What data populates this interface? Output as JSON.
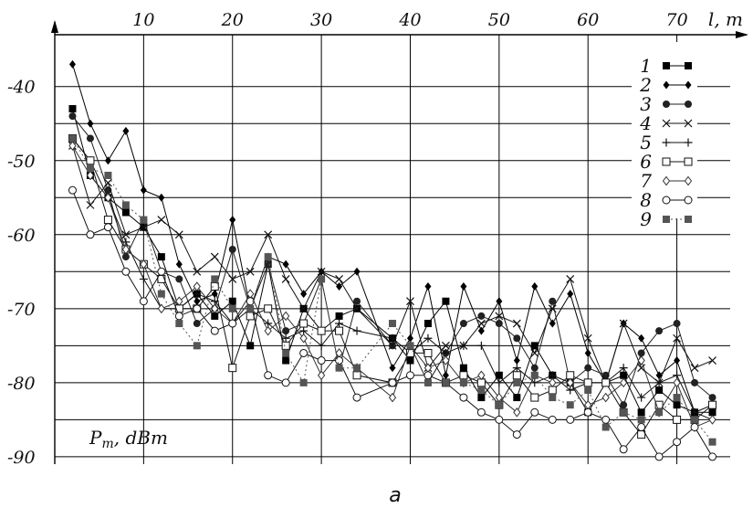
{
  "chart_data": {
    "type": "line",
    "caption": "а",
    "xlabel": "l, m",
    "ylabel": "Pm, dBm",
    "ylabel_main": "P",
    "ylabel_sub": "m",
    "ylabel_rest": ", dBm",
    "xlim": [
      0,
      76
    ],
    "ylim": [
      -91,
      -33
    ],
    "x_ticks": [
      10,
      20,
      30,
      40,
      50,
      60,
      70
    ],
    "y_ticks": [
      -40,
      -50,
      -60,
      -70,
      -80,
      -90
    ],
    "grid": true,
    "legend_position": "top-right",
    "series": [
      {
        "name": "1",
        "marker": "square-filled",
        "color": "#000000",
        "dash": "",
        "x": [
          2,
          4,
          6,
          8,
          10,
          12,
          14,
          16,
          18,
          20,
          22,
          24,
          26,
          28,
          30,
          32,
          34,
          38,
          40,
          42,
          44,
          46,
          48,
          50,
          52,
          54,
          56,
          58,
          60,
          62,
          64,
          66,
          68,
          70,
          72,
          74
        ],
        "y": [
          -43,
          -52,
          -55,
          -57,
          -59,
          -63,
          -70,
          -68,
          -71,
          -69,
          -75,
          -64,
          -77,
          -70,
          -73,
          -71,
          -70,
          -74,
          -77,
          -72,
          -69,
          -78,
          -82,
          -79,
          -82,
          -75,
          -79,
          -80,
          -84,
          -80,
          -79,
          -84,
          -81,
          -83,
          -84,
          -84
        ]
      },
      {
        "name": "2",
        "marker": "diamond-filled",
        "color": "#000000",
        "dash": "",
        "x": [
          2,
          4,
          6,
          8,
          10,
          12,
          14,
          16,
          18,
          20,
          22,
          24,
          26,
          28,
          30,
          32,
          34,
          38,
          40,
          42,
          44,
          46,
          48,
          50,
          52,
          54,
          56,
          58,
          60,
          62,
          64,
          66,
          68,
          70,
          72,
          74
        ],
        "y": [
          -37,
          -45,
          -50,
          -46,
          -54,
          -55,
          -64,
          -69,
          -68,
          -58,
          -70,
          -63,
          -64,
          -68,
          -65,
          -67,
          -65,
          -78,
          -74,
          -67,
          -79,
          -67,
          -73,
          -69,
          -77,
          -67,
          -72,
          -68,
          -76,
          -80,
          -72,
          -74,
          -79,
          -77,
          -84,
          -83
        ]
      },
      {
        "name": "3",
        "marker": "circle-filled",
        "color": "#222222",
        "dash": "",
        "x": [
          2,
          4,
          6,
          8,
          10,
          12,
          14,
          16,
          18,
          20,
          22,
          24,
          26,
          28,
          30,
          32,
          34,
          38,
          40,
          42,
          44,
          46,
          48,
          50,
          52,
          54,
          56,
          58,
          60,
          62,
          64,
          66,
          68,
          70,
          72,
          74
        ],
        "y": [
          -44,
          -47,
          -54,
          -63,
          -58,
          -65,
          -66,
          -72,
          -70,
          -62,
          -70,
          -64,
          -73,
          -72,
          -66,
          -78,
          -69,
          -75,
          -75,
          -80,
          -76,
          -72,
          -71,
          -72,
          -74,
          -78,
          -69,
          -80,
          -78,
          -79,
          -83,
          -76,
          -73,
          -72,
          -80,
          -82
        ]
      },
      {
        "name": "4",
        "marker": "x",
        "color": "#111111",
        "dash": "",
        "x": [
          2,
          4,
          6,
          8,
          10,
          12,
          14,
          16,
          18,
          20,
          22,
          24,
          26,
          28,
          30,
          32,
          34,
          38,
          40,
          42,
          44,
          46,
          48,
          50,
          52,
          54,
          56,
          58,
          60,
          62,
          64,
          66,
          68,
          70,
          72,
          74
        ],
        "y": [
          -48,
          -56,
          -53,
          -60,
          -59,
          -58,
          -60,
          -65,
          -63,
          -66,
          -65,
          -60,
          -66,
          -70,
          -65,
          -66,
          -70,
          -75,
          -69,
          -78,
          -75,
          -75,
          -72,
          -71,
          -72,
          -76,
          -70,
          -66,
          -74,
          -80,
          -72,
          -78,
          -80,
          -74,
          -78,
          -77
        ]
      },
      {
        "name": "5",
        "marker": "plus",
        "color": "#111111",
        "dash": "",
        "x": [
          2,
          4,
          6,
          8,
          10,
          12,
          14,
          16,
          18,
          20,
          22,
          24,
          26,
          28,
          30,
          32,
          34,
          38,
          40,
          42,
          44,
          46,
          48,
          50,
          52,
          54,
          56,
          58,
          60,
          62,
          64,
          66,
          68,
          70,
          72,
          74
        ],
        "y": [
          -47,
          -50,
          -55,
          -61,
          -66,
          -70,
          -70,
          -68,
          -69,
          -72,
          -70,
          -72,
          -74,
          -73,
          -75,
          -72,
          -73,
          -74,
          -76,
          -74,
          -76,
          -75,
          -75,
          -80,
          -78,
          -80,
          -79,
          -81,
          -80,
          -80,
          -78,
          -82,
          -80,
          -79,
          -84,
          -85
        ]
      },
      {
        "name": "6",
        "marker": "square-open",
        "color": "#111111",
        "dash": "",
        "x": [
          2,
          4,
          6,
          8,
          10,
          12,
          14,
          16,
          18,
          20,
          22,
          24,
          26,
          28,
          30,
          32,
          34,
          38,
          40,
          42,
          44,
          46,
          48,
          50,
          52,
          54,
          56,
          58,
          60,
          62,
          64,
          66,
          68,
          70,
          72,
          74
        ],
        "y": [
          -47,
          -50,
          -58,
          -62,
          -64,
          -66,
          -70,
          -70,
          -67,
          -78,
          -71,
          -70,
          -75,
          -72,
          -73,
          -73,
          -79,
          -80,
          -76,
          -76,
          -80,
          -79,
          -80,
          -83,
          -79,
          -82,
          -81,
          -79,
          -80,
          -80,
          -84,
          -87,
          -83,
          -85,
          -85,
          -83
        ]
      },
      {
        "name": "7",
        "marker": "diamond-open",
        "color": "#333333",
        "dash": "",
        "x": [
          2,
          4,
          6,
          8,
          10,
          12,
          14,
          16,
          18,
          20,
          22,
          24,
          26,
          28,
          30,
          32,
          34,
          38,
          40,
          42,
          44,
          46,
          48,
          50,
          52,
          54,
          56,
          58,
          60,
          62,
          64,
          66,
          68,
          70,
          72,
          74
        ],
        "y": [
          -48,
          -52,
          -55,
          -62,
          -64,
          -70,
          -69,
          -67,
          -70,
          -72,
          -68,
          -73,
          -71,
          -74,
          -79,
          -76,
          -78,
          -82,
          -75,
          -78,
          -77,
          -80,
          -79,
          -82,
          -84,
          -79,
          -80,
          -80,
          -83,
          -82,
          -80,
          -77,
          -84,
          -80,
          -86,
          -85
        ]
      },
      {
        "name": "8",
        "marker": "circle-open",
        "color": "#111111",
        "dash": "",
        "x": [
          2,
          4,
          6,
          8,
          10,
          12,
          14,
          16,
          18,
          20,
          22,
          24,
          26,
          28,
          30,
          32,
          34,
          38,
          40,
          42,
          44,
          46,
          48,
          50,
          52,
          54,
          56,
          58,
          60,
          62,
          64,
          66,
          68,
          70,
          72,
          74
        ],
        "y": [
          -54,
          -60,
          -59,
          -65,
          -69,
          -65,
          -71,
          -70,
          -73,
          -72,
          -69,
          -79,
          -80,
          -76,
          -77,
          -77,
          -82,
          -80,
          -79,
          -79,
          -80,
          -82,
          -84,
          -85,
          -87,
          -84,
          -85,
          -85,
          -84,
          -85,
          -89,
          -86,
          -90,
          -88,
          -86,
          -90
        ]
      },
      {
        "name": "9",
        "marker": "square-gray",
        "color": "#555555",
        "dash": "2,3",
        "x": [
          2,
          4,
          6,
          8,
          10,
          12,
          14,
          16,
          18,
          20,
          22,
          24,
          26,
          28,
          30,
          32,
          34,
          38,
          40,
          42,
          44,
          46,
          48,
          50,
          52,
          54,
          56,
          58,
          60,
          62,
          64,
          66,
          68,
          70,
          72,
          74
        ],
        "y": [
          -47,
          -51,
          -52,
          -56,
          -58,
          -68,
          -72,
          -75,
          -66,
          -70,
          -70,
          -63,
          -76,
          -80,
          -66,
          -78,
          -78,
          -72,
          -75,
          -80,
          -80,
          -80,
          -81,
          -83,
          -80,
          -79,
          -82,
          -83,
          -81,
          -86,
          -84,
          -85,
          -84,
          -82,
          -85,
          -88
        ]
      }
    ]
  }
}
